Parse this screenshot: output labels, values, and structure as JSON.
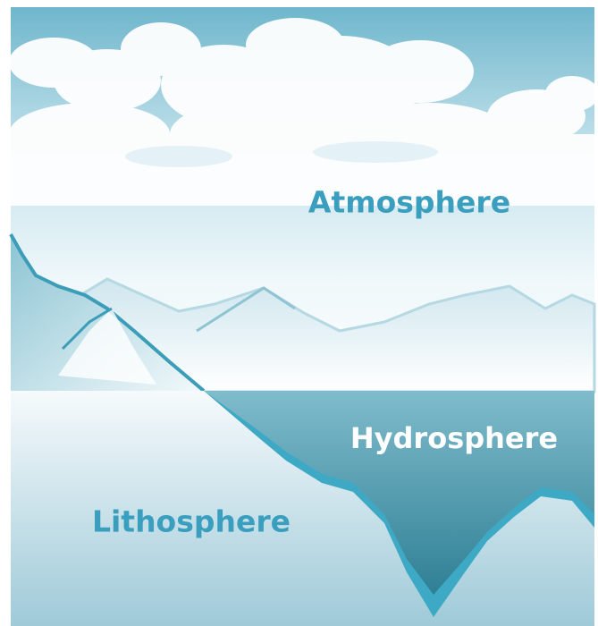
{
  "labels": {
    "atmosphere": "Atmosphere",
    "hydrosphere": "Hydrosphere",
    "lithosphere": "Lithosphere"
  }
}
